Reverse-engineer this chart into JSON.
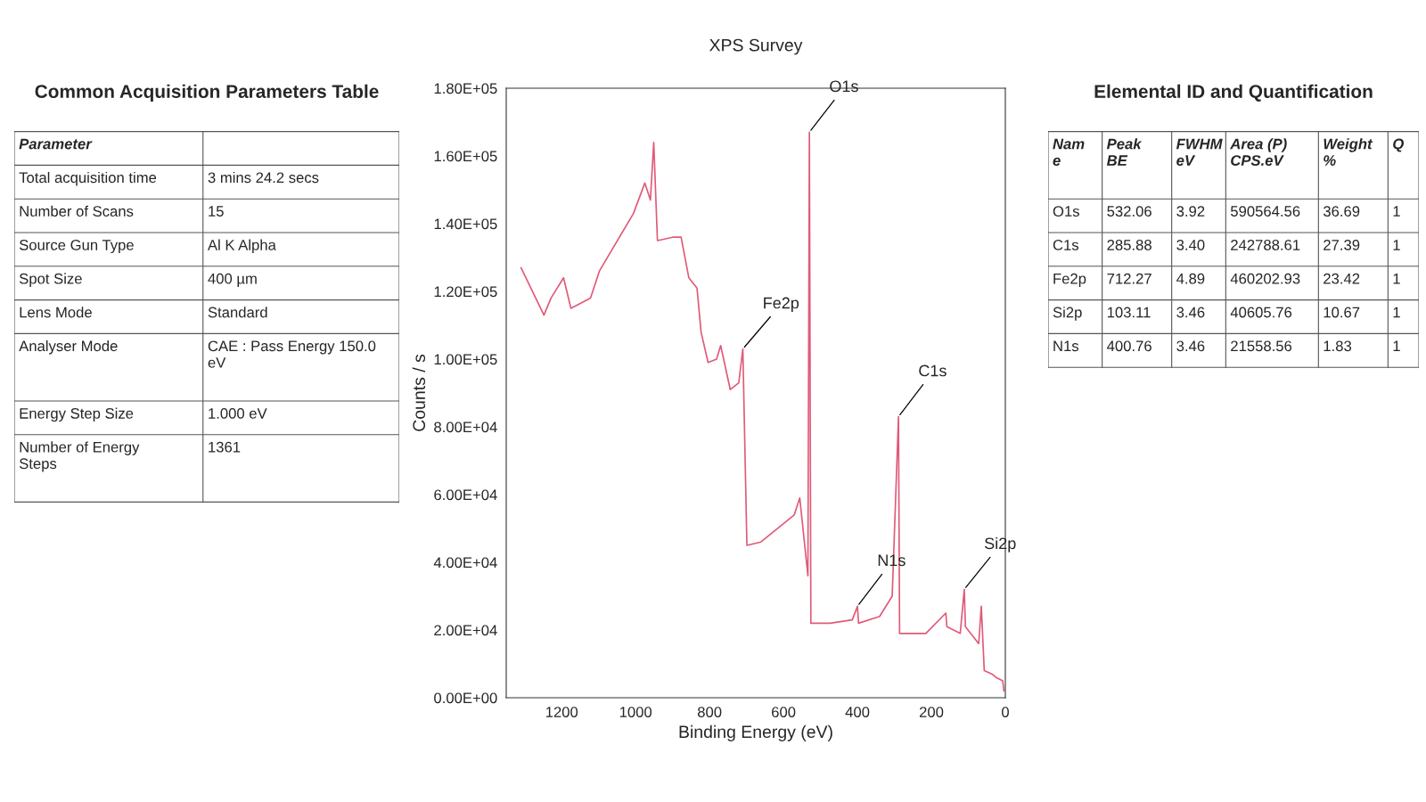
{
  "chart_data": [
    {
      "type": "other",
      "title": "Common Acquisition Parameters Table",
      "categories": [
        "Parameter",
        null
      ],
      "cell_labels": [
        [
          "Total acquisition time",
          "3 mins 24.2 secs"
        ],
        [
          "Number of Scans",
          "15"
        ],
        [
          "Source Gun Type",
          "Al K Alpha"
        ],
        [
          "Spot Size",
          "400 µm"
        ],
        [
          "Lens Mode",
          "Standard"
        ],
        [
          "Analyser Mode",
          "CAE : Pass Energy 150.0\neV"
        ],
        [
          "Energy Step Size",
          "1.000 eV"
        ],
        [
          "Number of Energy\nSteps",
          "1361"
        ]
      ]
    },
    {
      "type": "line",
      "title": "XPS Survey",
      "xlabel": "Binding Energy (eV)",
      "ylabel": "Counts / s",
      "series": [
        {
          "color": "#e05a78",
          "x": [
            1310,
            1248,
            1229,
            1195,
            1175,
            1122,
            1098,
            1006,
            975,
            960,
            951,
            941,
            900,
            877,
            856,
            834,
            823,
            804,
            781,
            770,
            744,
            721,
            710,
            699,
            661,
            571,
            556,
            534,
            530,
            526,
            474,
            414,
            400,
            397,
            340,
            306,
            289,
            286,
            215,
            161,
            158,
            122,
            111,
            108,
            72,
            65,
            57,
            36,
            25,
            7,
            4
          ],
          "values": [
            127000,
            113000,
            118000,
            124000,
            115000,
            118000,
            126000,
            143000,
            152000,
            147000,
            164000,
            135000,
            136000,
            136000,
            124000,
            121000,
            108000,
            99000,
            100000,
            104000,
            91000,
            93000,
            103000,
            45000,
            46000,
            54000,
            59000,
            36000,
            167000,
            22000,
            22000,
            23000,
            27000,
            22000,
            24000,
            30000,
            83000,
            19000,
            19000,
            25000,
            21000,
            19000,
            32000,
            21000,
            16000,
            27000,
            8000,
            7000,
            6000,
            5000,
            2000
          ]
        }
      ],
      "xlim": [
        1350,
        0
      ],
      "xticks": [
        0,
        200,
        400,
        600,
        800,
        1000,
        1200
      ],
      "ylim": [
        0,
        180000
      ],
      "yticks": [
        {
          "value": 0,
          "label": "0.00E+00"
        },
        {
          "value": 20000,
          "label": "2.00E+04"
        },
        {
          "value": 40000,
          "label": "4.00E+04"
        },
        {
          "value": 60000,
          "label": "6.00E+04"
        },
        {
          "value": 80000,
          "label": "8.00E+04"
        },
        {
          "value": 100000,
          "label": "1.00E+05"
        },
        {
          "value": 120000,
          "label": "1.20E+05"
        },
        {
          "value": 140000,
          "label": "1.40E+05"
        },
        {
          "value": 160000,
          "label": "1.60E+05"
        },
        {
          "value": 180000,
          "label": "1.80E+05"
        }
      ],
      "annotations": [
        {
          "text": "O1s",
          "x": 530,
          "y": 167000
        },
        {
          "text": "Fe2p",
          "x": 710,
          "y": 103000
        },
        {
          "text": "C1s",
          "x": 289,
          "y": 83000
        },
        {
          "text": "N1s",
          "x": 400,
          "y": 27000
        },
        {
          "text": "Si2p",
          "x": 111,
          "y": 32000
        }
      ]
    },
    {
      "type": "other",
      "title": "Elemental ID and Quantification",
      "categories": [
        "Nam\ne",
        "Peak\nBE",
        "FWHM\neV",
        "Area (P)\nCPS.eV",
        "Weight\n%",
        "Q"
      ],
      "cell_labels": [
        [
          "O1s",
          "532.06",
          "3.92",
          "590564.56",
          "36.69",
          "1"
        ],
        [
          "C1s",
          "285.88",
          "3.40",
          "242788.61",
          "27.39",
          "1"
        ],
        [
          "Fe2p",
          "712.27",
          "4.89",
          "460202.93",
          "23.42",
          "1"
        ],
        [
          "Si2p",
          "103.11",
          "3.46",
          "40605.76",
          "10.67",
          "1"
        ],
        [
          "N1s",
          "400.76",
          "3.46",
          "21558.56",
          "1.83",
          "1"
        ]
      ]
    }
  ]
}
